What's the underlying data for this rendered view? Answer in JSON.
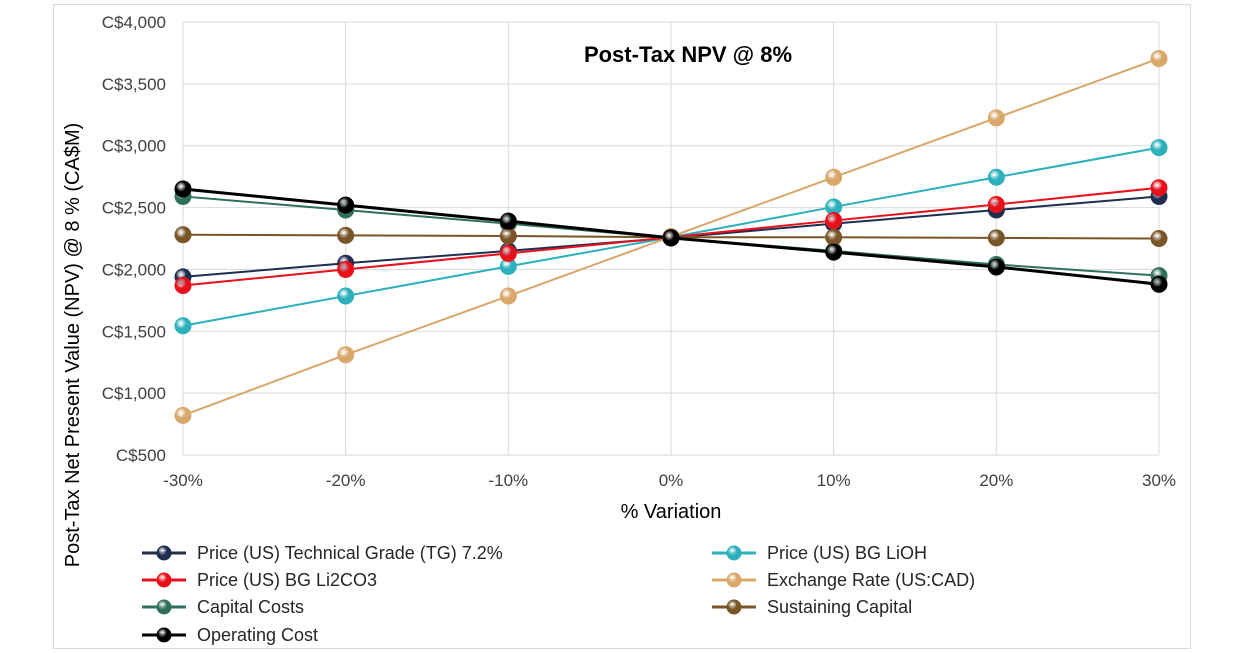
{
  "chart_data": {
    "type": "line",
    "title": "Post-Tax NPV @ 8%",
    "xlabel": "% Variation",
    "ylabel": "Post-Tax Net Present Value (NPV) @ 8 % (CA$M)",
    "categories": [
      "-30%",
      "-20%",
      "-10%",
      "0%",
      "10%",
      "20%",
      "30%"
    ],
    "x": [
      -30,
      -20,
      -10,
      0,
      10,
      20,
      30
    ],
    "xlim": [
      -30,
      30
    ],
    "ylim": [
      500,
      4000
    ],
    "ytick_values": [
      500,
      1000,
      1500,
      2000,
      2500,
      3000,
      3500,
      4000
    ],
    "ytick_labels": [
      "C$500",
      "C$1,000",
      "C$1,500",
      "C$2,000",
      "C$2,500",
      "C$3,000",
      "C$3,500",
      "C$4,000"
    ],
    "grid": true,
    "legend_position": "bottom",
    "series": [
      {
        "name": "Price (US) Technical Grade (TG) 7.2%",
        "color": "#1f2d4e",
        "values": [
          1940,
          2050,
          2150,
          2255,
          2370,
          2480,
          2590
        ]
      },
      {
        "name": "Price (US) BG LiOH",
        "color": "#2cb1bc",
        "values": [
          1545,
          1785,
          2025,
          2260,
          2505,
          2745,
          2985
        ]
      },
      {
        "name": "Price (US) BG Li2CO3",
        "color": "#e8101b",
        "values": [
          1870,
          2000,
          2130,
          2260,
          2395,
          2525,
          2660
        ]
      },
      {
        "name": "Exchange Rate (US:CAD)",
        "color": "#d9a76a",
        "values": [
          820,
          1310,
          1785,
          2265,
          2745,
          3225,
          3705
        ]
      },
      {
        "name": "Capital Costs",
        "color": "#2e7058",
        "values": [
          2590,
          2480,
          2370,
          2255,
          2150,
          2040,
          1950
        ]
      },
      {
        "name": "Sustaining Capital",
        "color": "#7a5528",
        "values": [
          2280,
          2275,
          2270,
          2260,
          2260,
          2255,
          2250
        ]
      },
      {
        "name": "Operating Cost",
        "color": "#000000",
        "values": [
          2650,
          2520,
          2390,
          2255,
          2140,
          2020,
          1880
        ]
      }
    ]
  }
}
